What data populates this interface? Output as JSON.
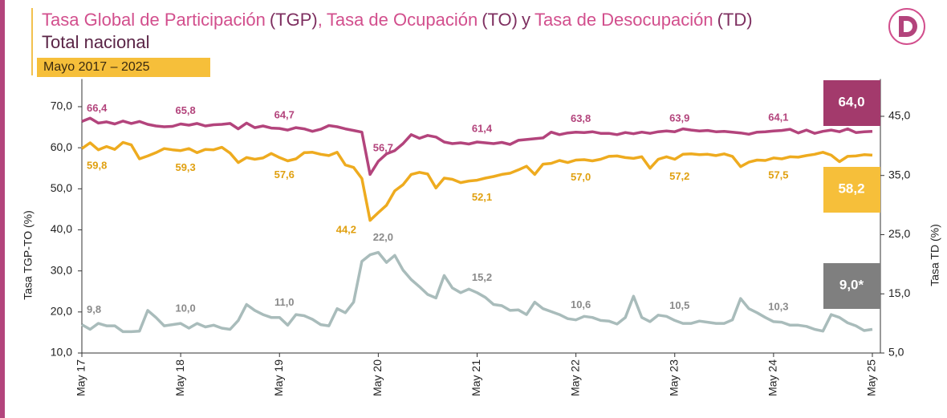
{
  "chart_data": {
    "type": "line",
    "title": [
      "Tasa Global de Participación",
      "(TGP)",
      ",",
      "Tasa de Ocupación",
      "(TO)",
      "y",
      "Tasa de Desocupación",
      "(TD)"
    ],
    "subtitle": "Total nacional",
    "period": "Mayo 2017 – 2025",
    "y_label": "Tasa TGP-TO (%)",
    "y2_label": "Tasa TD (%)",
    "categories": [
      "May 17",
      null,
      null,
      null,
      null,
      null,
      null,
      null,
      null,
      null,
      null,
      null,
      "May 18",
      null,
      null,
      null,
      null,
      null,
      null,
      null,
      null,
      null,
      null,
      null,
      "May 19",
      null,
      null,
      null,
      null,
      null,
      null,
      null,
      null,
      null,
      null,
      null,
      "May 20",
      null,
      null,
      null,
      null,
      null,
      null,
      null,
      null,
      null,
      null,
      null,
      "May 21",
      null,
      null,
      null,
      null,
      null,
      null,
      null,
      null,
      null,
      null,
      null,
      "May 22",
      null,
      null,
      null,
      null,
      null,
      null,
      null,
      null,
      null,
      null,
      null,
      "May 23",
      null,
      null,
      null,
      null,
      null,
      null,
      null,
      null,
      null,
      null,
      null,
      "May 24",
      null,
      null,
      null,
      null,
      null,
      null,
      null,
      null,
      null,
      null,
      null,
      "May 25"
    ],
    "ylim": [
      10,
      74
    ],
    "y2lim": [
      5,
      49.4
    ],
    "yticks": [
      {
        "value": 10,
        "label": "10,0"
      },
      {
        "value": 20,
        "label": "20,0"
      },
      {
        "value": 30,
        "label": "30,0"
      },
      {
        "value": 40,
        "label": "40,0"
      },
      {
        "value": 50,
        "label": "50,0"
      },
      {
        "value": 60,
        "label": "60,0"
      },
      {
        "value": 70,
        "label": "70,0"
      }
    ],
    "y2ticks": [
      {
        "value": 5,
        "label": "5,0"
      },
      {
        "value": 15,
        "label": "15,0"
      },
      {
        "value": 25,
        "label": "25,0"
      },
      {
        "value": 35,
        "label": "35,0"
      },
      {
        "value": 45,
        "label": "45,0"
      }
    ],
    "series": [
      {
        "name": "TGP",
        "color": "#b3447c",
        "values": [
          66.4,
          67.2,
          66.0,
          66.3,
          65.8,
          66.5,
          65.9,
          66.4,
          65.7,
          65.3,
          65.1,
          65.2,
          65.8,
          65.5,
          65.9,
          65.3,
          65.6,
          65.7,
          65.9,
          64.6,
          66.0,
          64.9,
          65.3,
          64.8,
          64.7,
          64.3,
          64.9,
          64.6,
          64.0,
          64.5,
          65.4,
          65.1,
          64.6,
          64.2,
          63.8,
          53.5,
          56.7,
          58.5,
          59.3,
          61.0,
          63.2,
          62.3,
          63.0,
          62.6,
          61.4,
          61.0,
          61.2,
          60.9,
          61.4,
          61.2,
          61.0,
          61.3,
          60.8,
          61.8,
          62.0,
          62.2,
          62.4,
          63.8,
          63.2,
          63.6,
          63.8,
          63.7,
          63.9,
          63.5,
          63.5,
          63.2,
          63.7,
          63.4,
          63.8,
          63.5,
          63.9,
          64.1,
          63.9,
          64.6,
          64.3,
          64.1,
          64.2,
          63.9,
          64.0,
          63.8,
          63.6,
          63.3,
          63.8,
          63.9,
          64.1,
          64.2,
          64.5,
          63.6,
          64.3,
          63.5,
          64.0,
          64.3,
          63.9,
          64.6,
          63.7,
          63.9,
          64.0
        ],
        "value_labels": [
          "66,4",
          null,
          null,
          null,
          null,
          null,
          null,
          null,
          null,
          null,
          null,
          null,
          "65,8",
          null,
          null,
          null,
          null,
          null,
          null,
          null,
          null,
          null,
          null,
          null,
          "64,7",
          null,
          null,
          null,
          null,
          null,
          null,
          null,
          null,
          null,
          null,
          null,
          "56,7",
          null,
          null,
          null,
          null,
          null,
          null,
          null,
          null,
          null,
          null,
          null,
          "61,4",
          null,
          null,
          null,
          null,
          null,
          null,
          null,
          null,
          null,
          null,
          null,
          "63,8",
          null,
          null,
          null,
          null,
          null,
          null,
          null,
          null,
          null,
          null,
          null,
          "63,9",
          null,
          null,
          null,
          null,
          null,
          null,
          null,
          null,
          null,
          null,
          null,
          "64,1",
          null,
          null,
          null,
          null,
          null,
          null,
          null,
          null,
          null,
          null,
          null,
          "64,0"
        ]
      },
      {
        "name": "TO",
        "color": "#eeab1f",
        "values": [
          59.8,
          61.2,
          59.5,
          60.3,
          59.6,
          61.3,
          60.7,
          57.3,
          58.0,
          58.8,
          59.8,
          59.5,
          59.3,
          59.8,
          58.8,
          59.6,
          59.5,
          60.1,
          58.7,
          56.4,
          57.6,
          57.2,
          57.5,
          58.6,
          57.6,
          56.8,
          57.3,
          58.8,
          58.9,
          58.4,
          58.1,
          58.9,
          55.8,
          55.2,
          52.5,
          42.3,
          44.2,
          46.0,
          49.5,
          51.0,
          53.5,
          54.0,
          53.6,
          50.2,
          52.6,
          52.3,
          51.5,
          51.9,
          52.1,
          52.6,
          53.0,
          53.5,
          53.8,
          54.6,
          55.5,
          53.5,
          56.0,
          56.2,
          56.9,
          56.4,
          57.0,
          57.1,
          56.8,
          57.2,
          57.9,
          58.0,
          57.6,
          57.4,
          57.8,
          55.0,
          57.2,
          57.8,
          57.2,
          58.4,
          58.5,
          58.3,
          58.4,
          58.1,
          58.5,
          57.9,
          55.4,
          56.5,
          57.0,
          56.9,
          57.5,
          57.3,
          57.8,
          57.7,
          58.1,
          58.4,
          58.9,
          58.2,
          56.6,
          57.9,
          58.0,
          58.3,
          58.2
        ],
        "value_labels": [
          "59,8",
          null,
          null,
          null,
          null,
          null,
          null,
          null,
          null,
          null,
          null,
          null,
          "59,3",
          null,
          null,
          null,
          null,
          null,
          null,
          null,
          null,
          null,
          null,
          null,
          "57,6",
          null,
          null,
          null,
          null,
          null,
          null,
          null,
          null,
          null,
          null,
          null,
          "44,2",
          null,
          null,
          null,
          null,
          null,
          null,
          null,
          null,
          null,
          null,
          null,
          "52,1",
          null,
          null,
          null,
          null,
          null,
          null,
          null,
          null,
          null,
          null,
          null,
          "57,0",
          null,
          null,
          null,
          null,
          null,
          null,
          null,
          null,
          null,
          null,
          null,
          "57,2",
          null,
          null,
          null,
          null,
          null,
          null,
          null,
          null,
          null,
          null,
          null,
          "57,5",
          null,
          null,
          null,
          null,
          null,
          null,
          null,
          null,
          null,
          null,
          null,
          "58,2"
        ]
      },
      {
        "name": "TD",
        "color": "#a9bcbb",
        "axis": "y2",
        "values": [
          9.8,
          9.0,
          10.0,
          9.6,
          9.6,
          8.6,
          8.6,
          8.7,
          12.2,
          11.0,
          9.6,
          9.8,
          10.0,
          9.2,
          10.0,
          9.4,
          9.7,
          9.2,
          9.0,
          10.5,
          13.2,
          12.2,
          11.5,
          11.0,
          11.0,
          9.7,
          11.5,
          11.3,
          10.7,
          9.8,
          9.6,
          12.5,
          11.8,
          13.6,
          20.5,
          21.6,
          22.0,
          20.3,
          21.5,
          19.0,
          17.4,
          16.2,
          14.9,
          14.3,
          18.1,
          16.0,
          15.2,
          15.8,
          15.2,
          14.4,
          13.2,
          13.0,
          12.2,
          12.3,
          11.5,
          13.6,
          12.5,
          12.0,
          11.5,
          10.8,
          10.6,
          11.2,
          11.0,
          10.5,
          10.4,
          9.9,
          11.0,
          14.6,
          11.0,
          10.3,
          11.4,
          11.2,
          10.5,
          10.0,
          10.0,
          10.4,
          10.2,
          10.0,
          10.0,
          10.6,
          14.2,
          12.5,
          11.8,
          11.0,
          10.3,
          10.2,
          9.7,
          9.7,
          9.5,
          9.0,
          8.7,
          11.5,
          11.0,
          10.1,
          9.6,
          8.8,
          9.0
        ],
        "value_labels": [
          "9,8",
          null,
          null,
          null,
          null,
          null,
          null,
          null,
          null,
          null,
          null,
          null,
          "10,0",
          null,
          null,
          null,
          null,
          null,
          null,
          null,
          null,
          null,
          null,
          null,
          "11,0",
          null,
          null,
          null,
          null,
          null,
          null,
          null,
          null,
          null,
          null,
          null,
          "22,0",
          null,
          null,
          null,
          null,
          null,
          null,
          null,
          null,
          null,
          null,
          null,
          "15,2",
          null,
          null,
          null,
          null,
          null,
          null,
          null,
          null,
          null,
          null,
          null,
          "10,6",
          null,
          null,
          null,
          null,
          null,
          null,
          null,
          null,
          null,
          null,
          null,
          "10,5",
          null,
          null,
          null,
          null,
          null,
          null,
          null,
          null,
          null,
          null,
          null,
          "10,3",
          null,
          null,
          null,
          null,
          null,
          null,
          null,
          null,
          null,
          null,
          null,
          "9,0*"
        ]
      }
    ]
  }
}
